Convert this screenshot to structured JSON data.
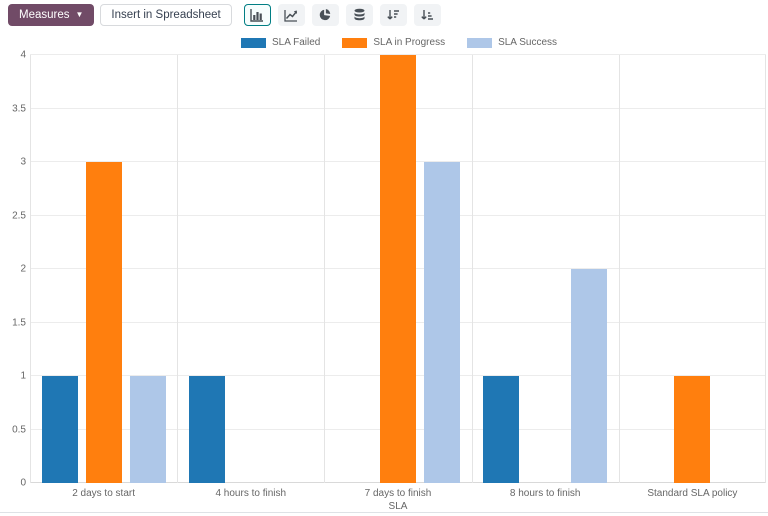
{
  "toolbar": {
    "measures_label": "Measures",
    "measures_caret": "▼",
    "insert_spreadsheet_label": "Insert in Spreadsheet",
    "accent_color": "#714B67",
    "active_border_color": "#017E84",
    "chart_buttons": [
      "bar-chart",
      "line-chart",
      "pie-chart",
      "stacked",
      "sort-descending",
      "sort-ascending"
    ],
    "active_chart_button": "bar-chart"
  },
  "chart_data": {
    "type": "bar",
    "title": "",
    "xlabel": "SLA",
    "ylabel": "",
    "ylim": [
      0,
      4
    ],
    "ytick_step": 0.5,
    "grid": true,
    "legend_position": "top",
    "categories": [
      "2 days to start",
      "4 hours to finish",
      "7 days to finish",
      "8 hours to finish",
      "Standard SLA policy"
    ],
    "series": [
      {
        "name": "SLA Failed",
        "color": "#1f77b4",
        "values": [
          1,
          1,
          0,
          1,
          0
        ]
      },
      {
        "name": "SLA in Progress",
        "color": "#ff7f0e",
        "values": [
          3,
          0,
          4,
          0,
          1
        ]
      },
      {
        "name": "SLA Success",
        "color": "#aec7e8",
        "values": [
          1,
          0,
          3,
          2,
          0
        ]
      }
    ]
  }
}
